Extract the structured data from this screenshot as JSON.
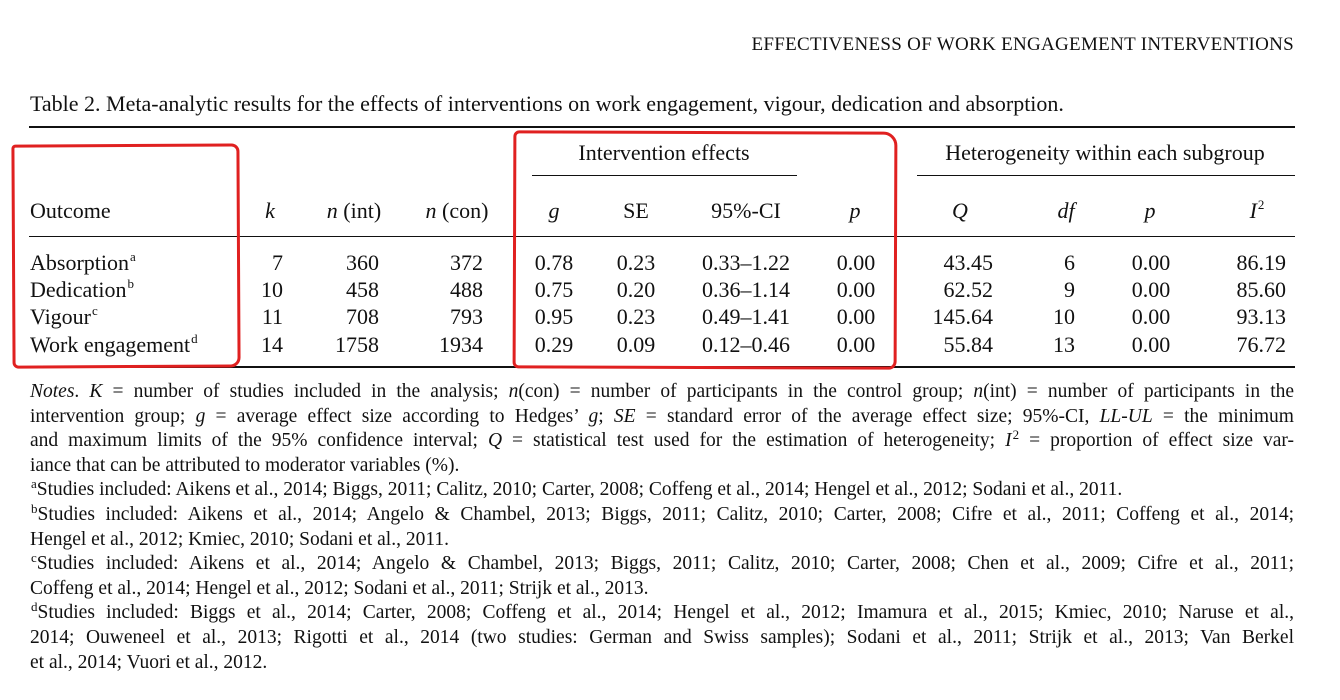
{
  "running_head": "EFFECTIVENESS OF WORK ENGAGEMENT INTERVENTIONS",
  "caption": "Table 2.  Meta-analytic results for the effects of interventions on work engagement, vigour, dedication and absorption.",
  "group_headers": {
    "intervention_effects": "Intervention effects",
    "heterogeneity": "Heterogeneity within each subgroup"
  },
  "columns": {
    "outcome": "Outcome",
    "k": "k",
    "n_int_italic": "n",
    "n_int_rest": " (int)",
    "n_con_italic": "n",
    "n_con_rest": " (con)",
    "g": "g",
    "se": "SE",
    "ci": "95%-CI",
    "p1": "p",
    "q": "Q",
    "df": "df",
    "p2": "p",
    "i2_base": "I",
    "i2_sup": "2"
  },
  "rows": [
    {
      "outcome": "Absorption",
      "sup": "a",
      "k": "7",
      "n_int": "360",
      "n_con": "372",
      "g": "0.78",
      "se": "0.23",
      "ci": "0.33–1.22",
      "p1": "0.00",
      "q": "43.45",
      "df": "6",
      "p2": "0.00",
      "i2": "86.19"
    },
    {
      "outcome": "Dedication",
      "sup": "b",
      "k": "10",
      "n_int": "458",
      "n_con": "488",
      "g": "0.75",
      "se": "0.20",
      "ci": "0.36–1.14",
      "p1": "0.00",
      "q": "62.52",
      "df": "9",
      "p2": "0.00",
      "i2": "85.60"
    },
    {
      "outcome": "Vigour",
      "sup": "c",
      "k": "11",
      "n_int": "708",
      "n_con": "793",
      "g": "0.95",
      "se": "0.23",
      "ci": "0.49–1.41",
      "p1": "0.00",
      "q": "145.64",
      "df": "10",
      "p2": "0.00",
      "i2": "93.13"
    },
    {
      "outcome": "Work engagement",
      "sup": "d",
      "k": "14",
      "n_int": "1758",
      "n_con": "1934",
      "g": "0.29",
      "se": "0.09",
      "ci": "0.12–0.46",
      "p1": "0.00",
      "q": "55.84",
      "df": "13",
      "p2": "0.00",
      "i2": "76.72"
    }
  ],
  "notes": {
    "p1_a": "Notes",
    "p1_b": ". ",
    "p1_c": "K",
    "p1_d": " = number of studies included in the analysis; ",
    "p1_e": "n",
    "p1_f": "(con) = number of participants in the control group; ",
    "p1_g": "n",
    "p1_h": "(int) = number of participants in the",
    "p2_a": "intervention group; ",
    "p2_b": "g",
    "p2_c": " = average effect size according to Hedges’ ",
    "p2_d": "g",
    "p2_e": "; ",
    "p2_f": "SE",
    "p2_g": " = standard error of the average effect size; 95%-CI, ",
    "p2_h": "LL-UL",
    "p2_i": " = the minimum",
    "p3_a": "and maximum limits of the 95% confidence interval; ",
    "p3_b": "Q",
    "p3_c": " = statistical test used for the estimation of heterogeneity; ",
    "p3_d": "I",
    "p3_e": "2",
    "p3_f": " = proportion of effect size var-",
    "p4": "iance that can be attributed to moderator variables (%).",
    "a_sup": "a",
    "a_text": "Studies included: Aikens et al., 2014; Biggs, 2011; Calitz, 2010; Carter, 2008; Coffeng et al., 2014; Hengel et al., 2012; Sodani et al., 2011.",
    "b_sup": "b",
    "b_text1": "Studies included: Aikens et al., 2014; Angelo & Chambel, 2013; Biggs, 2011; Calitz, 2010; Carter, 2008; Cifre et al., 2011; Coffeng et al., 2014;",
    "b_text2": "Hengel et al., 2012; Kmiec, 2010; Sodani et al., 2011.",
    "c_sup": "c",
    "c_text1": "Studies included: Aikens et al., 2014; Angelo & Chambel, 2013; Biggs, 2011; Calitz, 2010; Carter, 2008; Chen et al., 2009; Cifre et al., 2011;",
    "c_text2": "Coffeng et al., 2014; Hengel et al., 2012; Sodani et al., 2011; Strijk et al., 2013.",
    "d_sup": "d",
    "d_text1": "Studies included: Biggs et al., 2014; Carter, 2008; Coffeng et al., 2014; Hengel et al., 2012; Imamura et al., 2015; Kmiec, 2010; Naruse et al.,",
    "d_text2": "2014; Ouweneel et al., 2013; Rigotti et al., 2014 (two studies: German and Swiss samples); Sodani et al., 2011; Strijk et al., 2013; Van Berkel",
    "d_text3": "et al., 2014; Vuori et al., 2012."
  },
  "annotation_color": "#e02020"
}
